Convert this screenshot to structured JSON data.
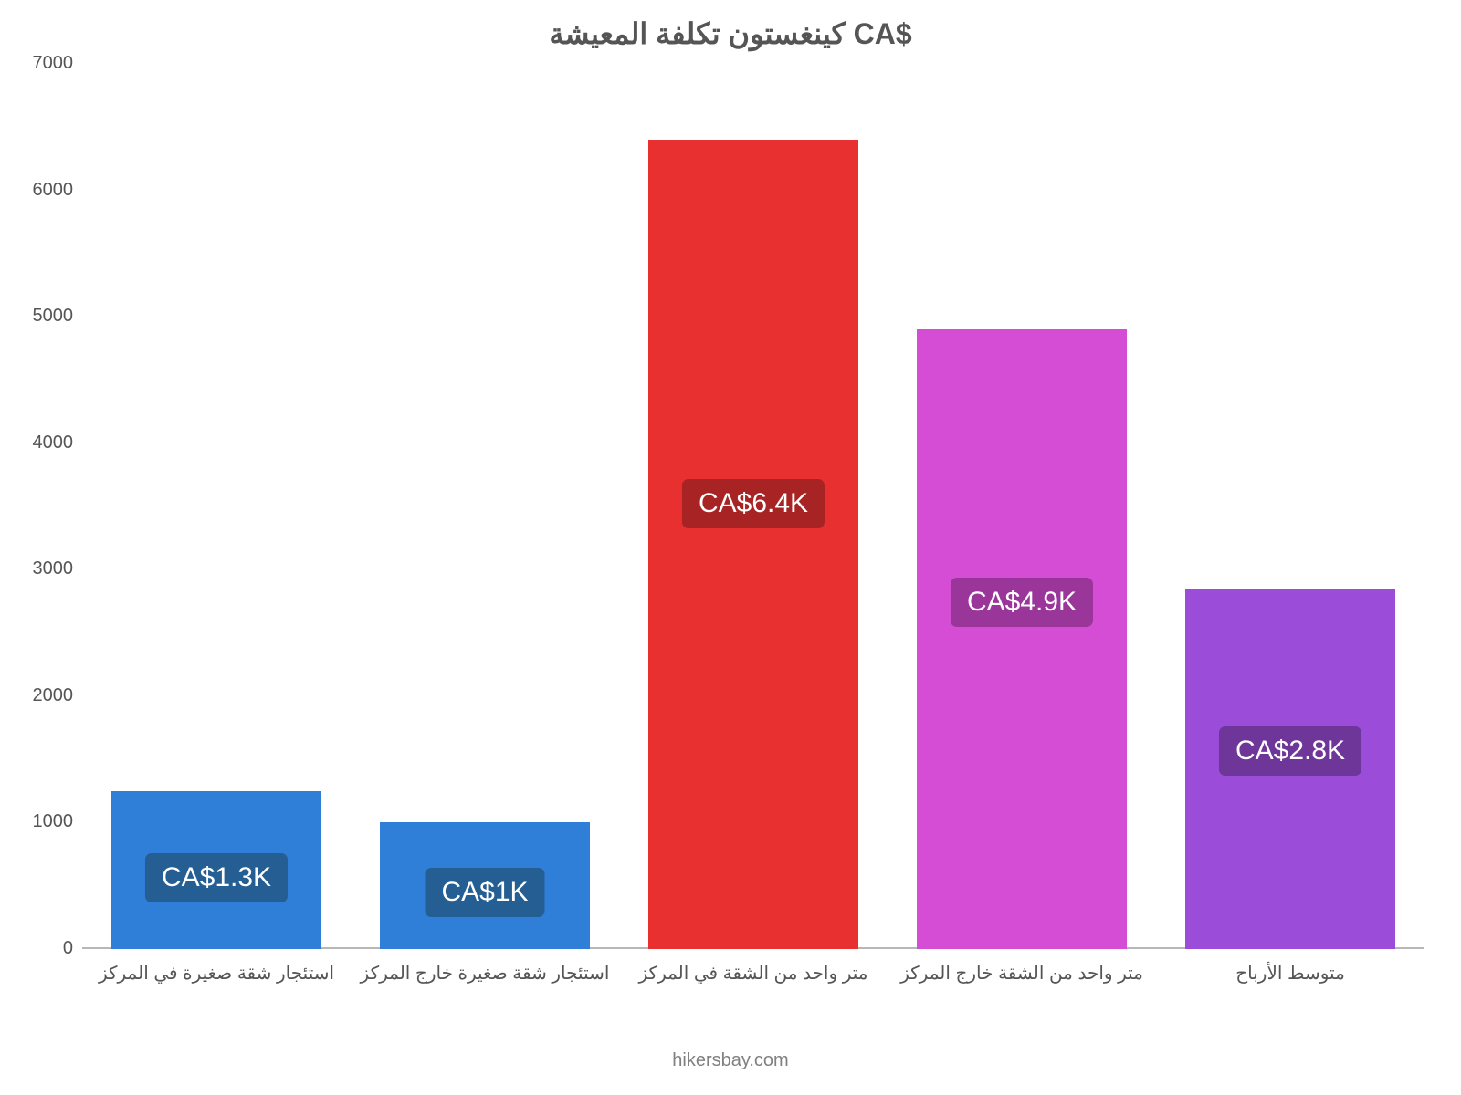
{
  "chart": {
    "type": "bar",
    "title": "كينغستون تكلفة المعيشة CA$",
    "title_color": "#555555",
    "title_fontsize": 32,
    "background_color": "#ffffff",
    "axis_color": "#b7b7b7",
    "label_color": "#555555",
    "label_fontsize": 20,
    "ylim": [
      0,
      7000
    ],
    "yticks": [
      0,
      1000,
      2000,
      3000,
      4000,
      5000,
      6000,
      7000
    ],
    "categories": [
      "استئجار شقة صغيرة في المركز",
      "استئجار شقة صغيرة خارج المركز",
      "متر واحد من الشقة في المركز",
      "متر واحد من الشقة خارج المركز",
      "متوسط الأرباح"
    ],
    "values": [
      1250,
      1000,
      6400,
      4900,
      2850
    ],
    "bar_colors": [
      "#2f7ed8",
      "#2f7ed8",
      "#e83030",
      "#d54cd5",
      "#9b4cd9"
    ],
    "badge_colors": [
      "#245e92",
      "#245e92",
      "#a82323",
      "#9a369a",
      "#6f369a"
    ],
    "value_labels": [
      "CA$1.3K",
      "CA$1K",
      "CA$6.4K",
      "CA$4.9K",
      "CA$2.8K"
    ],
    "value_label_fontsize": 30,
    "value_label_color": "#ffffff",
    "bar_width": 0.78,
    "footer": "hikersbay.com",
    "footer_color": "#808080"
  }
}
